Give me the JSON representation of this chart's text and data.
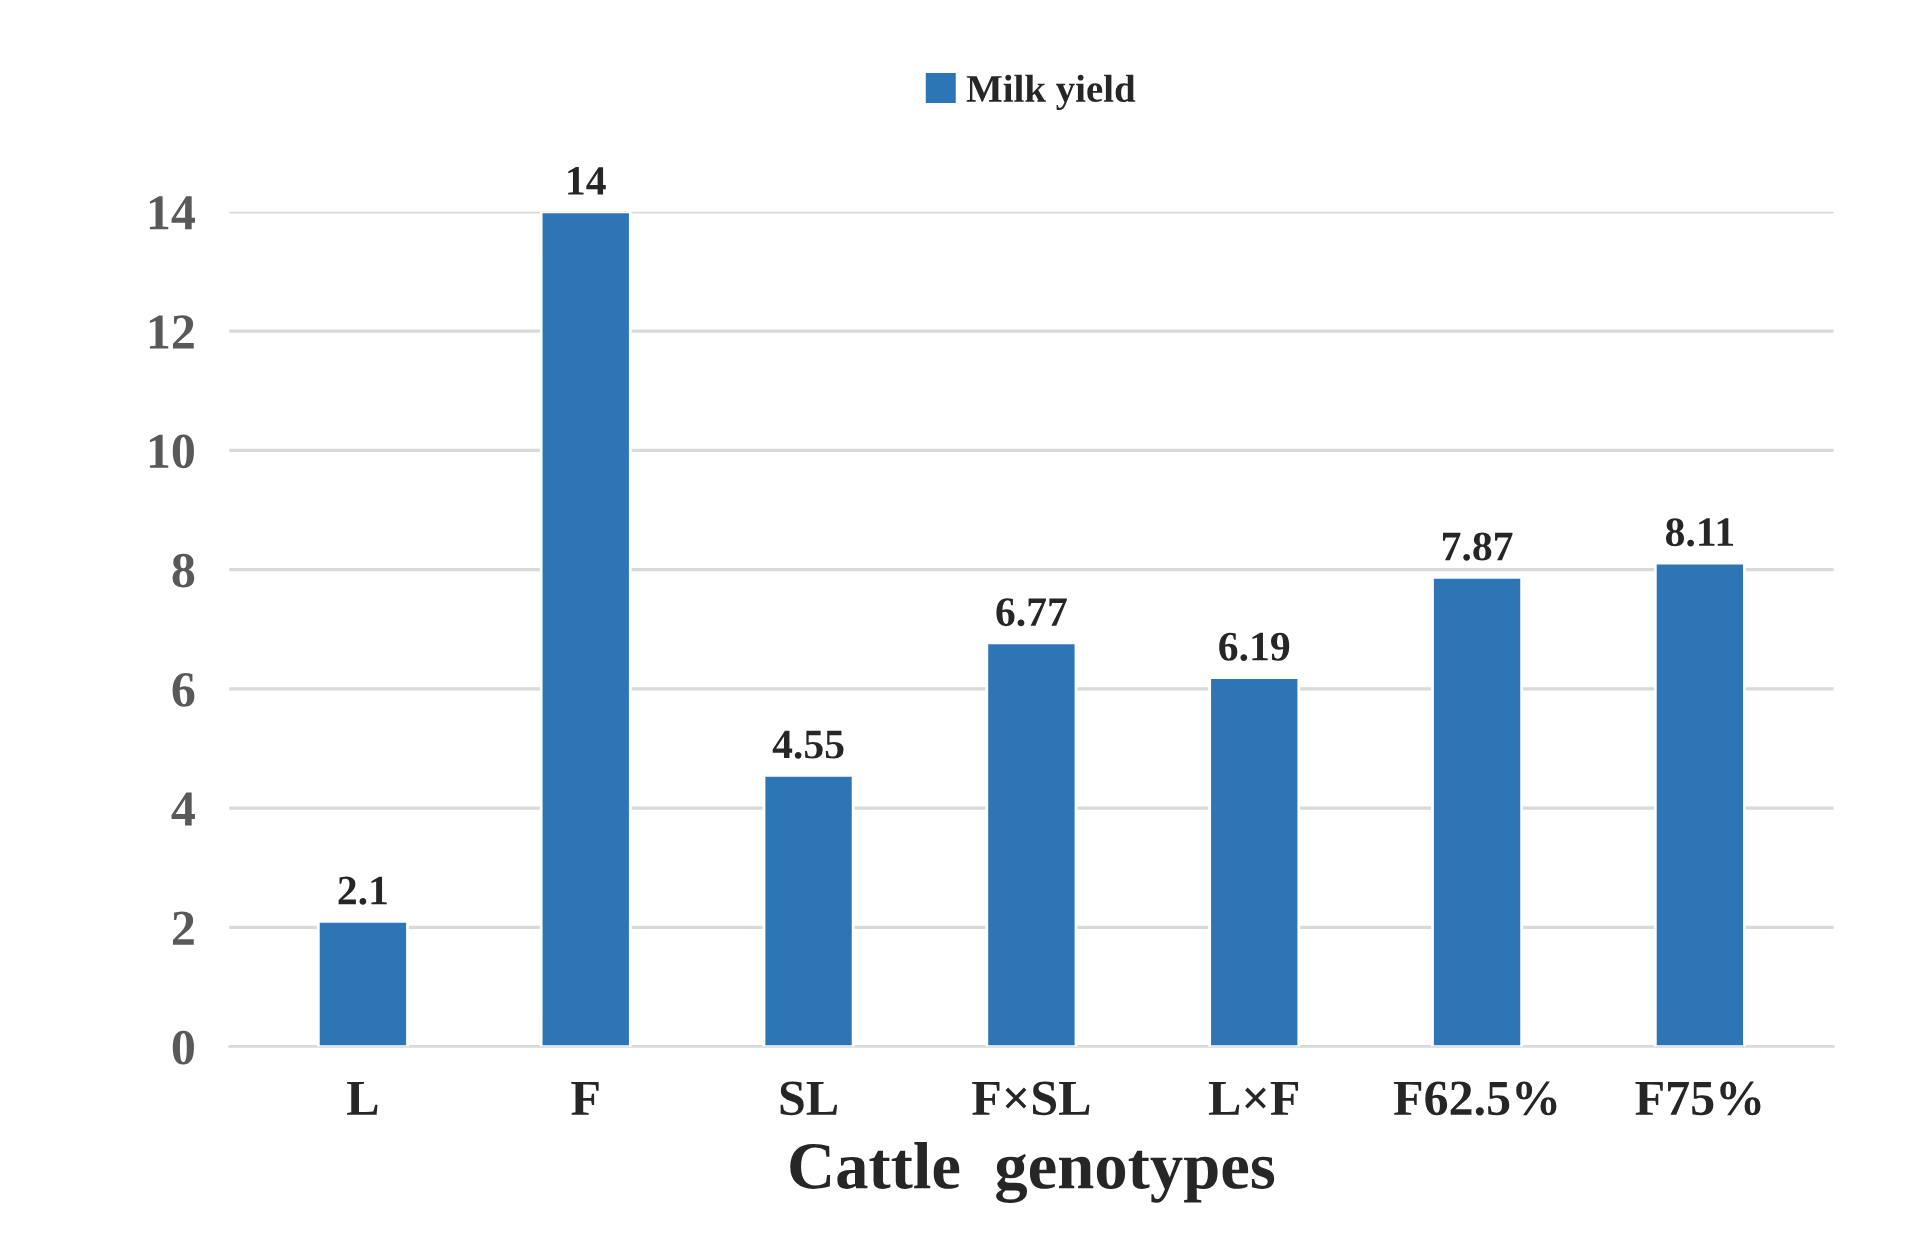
{
  "chart_data": {
    "type": "bar",
    "categories": [
      "L",
      "F",
      "SL",
      "F×SL",
      "L×F",
      "F62.5%",
      "F75%"
    ],
    "series": [
      {
        "name": "Milk yield",
        "color": "#2e75b6",
        "values": [
          2.1,
          14,
          4.55,
          6.77,
          6.19,
          7.87,
          8.11
        ]
      }
    ],
    "xlabel": "Cattle  genotypes",
    "ylim": [
      0,
      14
    ],
    "yticks": [
      0,
      2,
      4,
      6,
      8,
      10,
      12,
      14
    ],
    "grid": "y",
    "legend": "top",
    "data_labels": true
  }
}
